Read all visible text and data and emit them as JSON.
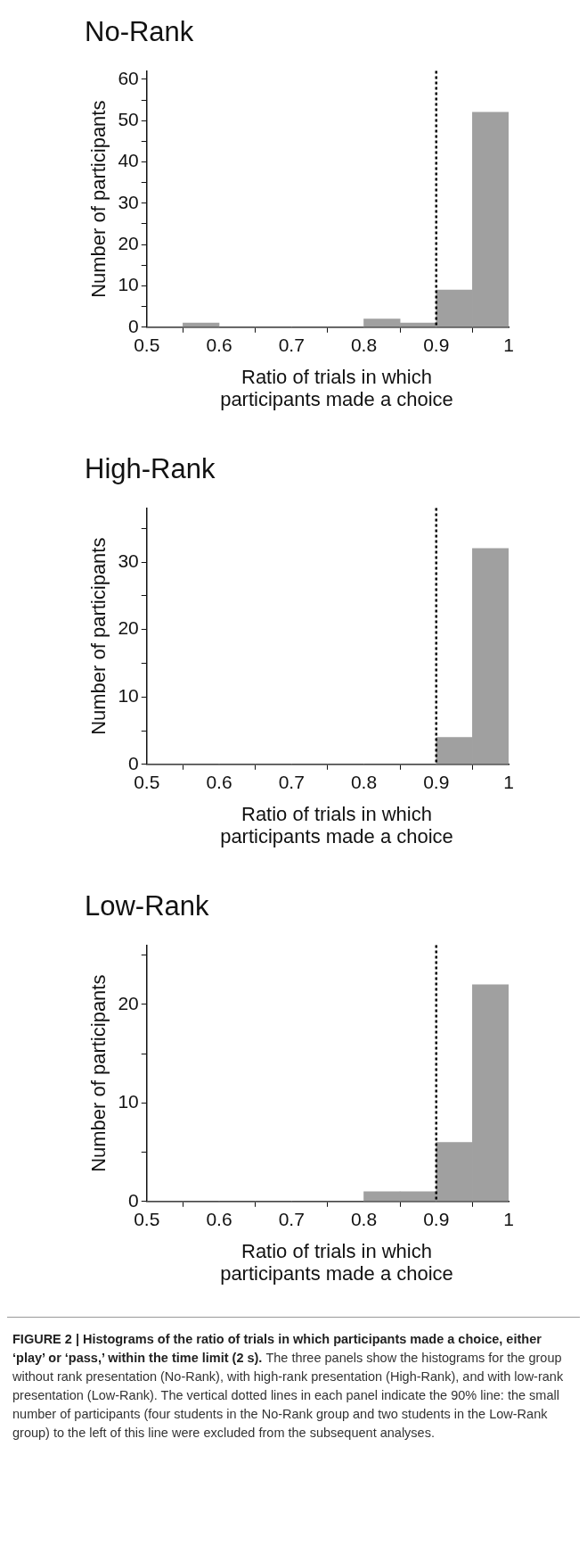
{
  "chart_data": [
    {
      "type": "histogram",
      "title": "No-Rank",
      "xlabel": "Ratio of trials in which participants made a choice",
      "ylabel": "Number of participants",
      "bins": [
        0.5,
        0.55,
        0.6,
        0.65,
        0.7,
        0.75,
        0.8,
        0.85,
        0.9,
        0.95,
        1
      ],
      "values": [
        0,
        1,
        0,
        0,
        0,
        0,
        2,
        1,
        9,
        52
      ],
      "color": "#a0a0a0",
      "xlim": [
        0.5,
        1
      ],
      "xticks": [
        0.5,
        0.6,
        0.7,
        0.8,
        0.9,
        1
      ],
      "ylim": [
        0,
        62
      ],
      "yticks": [
        0,
        {
          "value": 5,
          "label": null
        },
        10,
        {
          "value": 15,
          "label": null
        },
        20,
        {
          "value": 25,
          "label": null
        },
        30,
        {
          "value": 35,
          "label": null
        },
        40,
        {
          "value": 45,
          "label": null
        },
        50,
        {
          "value": 55,
          "label": null
        },
        60
      ],
      "ref_lines": [
        {
          "axis": "x",
          "value": 0.9,
          "color": "#000000",
          "line_style": "dotted"
        }
      ],
      "grid": false,
      "legend": false
    },
    {
      "type": "histogram",
      "title": "High-Rank",
      "xlabel": "Ratio of trials in which participants made a choice",
      "ylabel": "Number of participants",
      "bins": [
        0.5,
        0.55,
        0.6,
        0.65,
        0.7,
        0.75,
        0.8,
        0.85,
        0.9,
        0.95,
        1
      ],
      "values": [
        0,
        0,
        0,
        0,
        0,
        0,
        0,
        0,
        4,
        32
      ],
      "color": "#a0a0a0",
      "xlim": [
        0.5,
        1
      ],
      "xticks": [
        0.5,
        0.6,
        0.7,
        0.8,
        0.9,
        1
      ],
      "ylim": [
        0,
        38
      ],
      "yticks": [
        0,
        {
          "value": 5,
          "label": null
        },
        10,
        {
          "value": 15,
          "label": null
        },
        20,
        {
          "value": 25,
          "label": null
        },
        30,
        {
          "value": 35,
          "label": null
        }
      ],
      "ref_lines": [
        {
          "axis": "x",
          "value": 0.9,
          "color": "#000000",
          "line_style": "dotted"
        }
      ],
      "grid": false,
      "legend": false
    },
    {
      "type": "histogram",
      "title": "Low-Rank",
      "xlabel": "Ratio of trials in which participants made a choice",
      "ylabel": "Number of participants",
      "bins": [
        0.5,
        0.55,
        0.6,
        0.65,
        0.7,
        0.75,
        0.8,
        0.85,
        0.9,
        0.95,
        1
      ],
      "values": [
        0,
        0,
        0,
        0,
        0,
        0,
        1,
        1,
        6,
        22
      ],
      "color": "#a0a0a0",
      "xlim": [
        0.5,
        1
      ],
      "xticks": [
        0.5,
        0.6,
        0.7,
        0.8,
        0.9,
        1
      ],
      "ylim": [
        0,
        26
      ],
      "yticks": [
        0,
        {
          "value": 5,
          "label": null
        },
        10,
        {
          "value": 15,
          "label": null
        },
        20,
        {
          "value": 25,
          "label": null
        }
      ],
      "ref_lines": [
        {
          "axis": "x",
          "value": 0.9,
          "color": "#000000",
          "line_style": "dotted"
        }
      ],
      "grid": false,
      "legend": false,
      "annotations": [
        "FIGURE 2 | Histograms of the ratio of trials in which participants made a choice, either ‘play’ or ‘pass,’ within the time limit (2 s).",
        "The three panels show the histograms for the group without rank presentation (No-Rank), with high-rank presentation (High-Rank), and with low-rank presentation (Low-Rank). The vertical dotted lines in each panel indicate the 90% line: the small number of participants (four students in the No-Rank group and two students in the Low-Rank group) to the left of this line were excluded from the subsequent analyses."
      ]
    }
  ]
}
